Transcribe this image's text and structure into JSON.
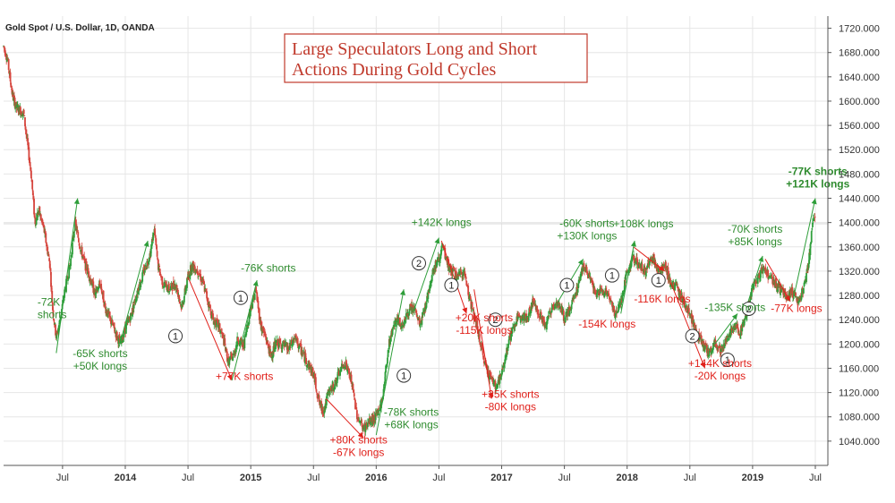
{
  "chart_data": {
    "type": "candlestick",
    "symbol": "Gold Spot / U.S. Dollar, 1D, OANDA",
    "title_lines": [
      "Large Speculators Long and Short",
      "Actions During Gold Cycles"
    ],
    "ylim": [
      1000,
      1740
    ],
    "y_ticks": [
      "1720.000",
      "1680.000",
      "1640.000",
      "1600.000",
      "1560.000",
      "1520.000",
      "1480.000",
      "1440.000",
      "1400.000",
      "1360.000",
      "1320.000",
      "1280.000",
      "1240.000",
      "1200.000",
      "1160.000",
      "1120.000",
      "1080.000",
      "1040.000"
    ],
    "y_tick_values": [
      1720,
      1680,
      1640,
      1600,
      1560,
      1520,
      1480,
      1440,
      1400,
      1360,
      1320,
      1280,
      1240,
      1200,
      1160,
      1120,
      1080,
      1040
    ],
    "x_ticks": [
      {
        "label": "Jul",
        "t": 2013.5,
        "bold": false
      },
      {
        "label": "2014",
        "t": 2014.0,
        "bold": true
      },
      {
        "label": "Jul",
        "t": 2014.5,
        "bold": false
      },
      {
        "label": "2015",
        "t": 2015.0,
        "bold": true
      },
      {
        "label": "Jul",
        "t": 2015.5,
        "bold": false
      },
      {
        "label": "2016",
        "t": 2016.0,
        "bold": true
      },
      {
        "label": "Jul",
        "t": 2016.5,
        "bold": false
      },
      {
        "label": "2017",
        "t": 2017.0,
        "bold": true
      },
      {
        "label": "Jul",
        "t": 2017.5,
        "bold": false
      },
      {
        "label": "2018",
        "t": 2018.0,
        "bold": true
      },
      {
        "label": "Jul",
        "t": 2018.5,
        "bold": false
      },
      {
        "label": "2019",
        "t": 2019.0,
        "bold": true
      },
      {
        "label": "Jul",
        "t": 2019.5,
        "bold": false
      }
    ],
    "xlim": [
      2013.03,
      2019.6
    ],
    "reference_level": 1398,
    "price_path": [
      [
        2013.03,
        1690
      ],
      [
        2013.06,
        1670
      ],
      [
        2013.1,
        1610
      ],
      [
        2013.13,
        1590
      ],
      [
        2013.19,
        1580
      ],
      [
        2013.25,
        1480
      ],
      [
        2013.28,
        1400
      ],
      [
        2013.31,
        1420
      ],
      [
        2013.35,
        1390
      ],
      [
        2013.4,
        1330
      ],
      [
        2013.42,
        1260
      ],
      [
        2013.45,
        1210
      ],
      [
        2013.48,
        1240
      ],
      [
        2013.52,
        1290
      ],
      [
        2013.56,
        1330
      ],
      [
        2013.6,
        1400
      ],
      [
        2013.64,
        1360
      ],
      [
        2013.68,
        1330
      ],
      [
        2013.72,
        1310
      ],
      [
        2013.76,
        1280
      ],
      [
        2013.8,
        1300
      ],
      [
        2013.84,
        1260
      ],
      [
        2013.88,
        1240
      ],
      [
        2013.92,
        1220
      ],
      [
        2013.96,
        1200
      ],
      [
        2014.0,
        1225
      ],
      [
        2014.05,
        1250
      ],
      [
        2014.1,
        1290
      ],
      [
        2014.15,
        1320
      ],
      [
        2014.2,
        1350
      ],
      [
        2014.23,
        1390
      ],
      [
        2014.26,
        1330
      ],
      [
        2014.3,
        1300
      ],
      [
        2014.35,
        1290
      ],
      [
        2014.4,
        1300
      ],
      [
        2014.45,
        1260
      ],
      [
        2014.5,
        1310
      ],
      [
        2014.53,
        1330
      ],
      [
        2014.58,
        1320
      ],
      [
        2014.62,
        1300
      ],
      [
        2014.66,
        1270
      ],
      [
        2014.7,
        1240
      ],
      [
        2014.74,
        1230
      ],
      [
        2014.78,
        1210
      ],
      [
        2014.82,
        1170
      ],
      [
        2014.86,
        1180
      ],
      [
        2014.9,
        1210
      ],
      [
        2014.94,
        1195
      ],
      [
        2015.0,
        1260
      ],
      [
        2015.04,
        1290
      ],
      [
        2015.08,
        1230
      ],
      [
        2015.12,
        1210
      ],
      [
        2015.16,
        1180
      ],
      [
        2015.2,
        1200
      ],
      [
        2015.25,
        1200
      ],
      [
        2015.3,
        1190
      ],
      [
        2015.35,
        1210
      ],
      [
        2015.4,
        1190
      ],
      [
        2015.45,
        1170
      ],
      [
        2015.5,
        1150
      ],
      [
        2015.55,
        1100
      ],
      [
        2015.58,
        1090
      ],
      [
        2015.62,
        1120
      ],
      [
        2015.66,
        1130
      ],
      [
        2015.7,
        1150
      ],
      [
        2015.75,
        1170
      ],
      [
        2015.8,
        1140
      ],
      [
        2015.85,
        1080
      ],
      [
        2015.9,
        1060
      ],
      [
        2015.94,
        1070
      ],
      [
        2016.0,
        1080
      ],
      [
        2016.05,
        1110
      ],
      [
        2016.1,
        1200
      ],
      [
        2016.15,
        1240
      ],
      [
        2016.2,
        1230
      ],
      [
        2016.25,
        1250
      ],
      [
        2016.3,
        1260
      ],
      [
        2016.35,
        1230
      ],
      [
        2016.4,
        1270
      ],
      [
        2016.45,
        1320
      ],
      [
        2016.5,
        1340
      ],
      [
        2016.53,
        1360
      ],
      [
        2016.56,
        1335
      ],
      [
        2016.6,
        1320
      ],
      [
        2016.65,
        1310
      ],
      [
        2016.7,
        1320
      ],
      [
        2016.75,
        1270
      ],
      [
        2016.8,
        1230
      ],
      [
        2016.85,
        1180
      ],
      [
        2016.9,
        1150
      ],
      [
        2016.95,
        1130
      ],
      [
        2017.0,
        1150
      ],
      [
        2017.05,
        1200
      ],
      [
        2017.1,
        1230
      ],
      [
        2017.15,
        1250
      ],
      [
        2017.2,
        1240
      ],
      [
        2017.25,
        1270
      ],
      [
        2017.3,
        1250
      ],
      [
        2017.35,
        1230
      ],
      [
        2017.4,
        1260
      ],
      [
        2017.45,
        1270
      ],
      [
        2017.5,
        1240
      ],
      [
        2017.55,
        1260
      ],
      [
        2017.6,
        1290
      ],
      [
        2017.65,
        1330
      ],
      [
        2017.7,
        1310
      ],
      [
        2017.75,
        1280
      ],
      [
        2017.8,
        1290
      ],
      [
        2017.85,
        1280
      ],
      [
        2017.9,
        1250
      ],
      [
        2017.95,
        1270
      ],
      [
        2018.0,
        1320
      ],
      [
        2018.05,
        1340
      ],
      [
        2018.1,
        1330
      ],
      [
        2018.15,
        1320
      ],
      [
        2018.2,
        1345
      ],
      [
        2018.25,
        1320
      ],
      [
        2018.3,
        1330
      ],
      [
        2018.35,
        1300
      ],
      [
        2018.4,
        1290
      ],
      [
        2018.45,
        1270
      ],
      [
        2018.5,
        1250
      ],
      [
        2018.55,
        1220
      ],
      [
        2018.6,
        1200
      ],
      [
        2018.65,
        1185
      ],
      [
        2018.7,
        1200
      ],
      [
        2018.75,
        1190
      ],
      [
        2018.8,
        1210
      ],
      [
        2018.85,
        1230
      ],
      [
        2018.9,
        1220
      ],
      [
        2018.95,
        1250
      ],
      [
        2019.0,
        1290
      ],
      [
        2019.05,
        1310
      ],
      [
        2019.1,
        1330
      ],
      [
        2019.13,
        1310
      ],
      [
        2019.18,
        1300
      ],
      [
        2019.22,
        1290
      ],
      [
        2019.27,
        1280
      ],
      [
        2019.32,
        1285
      ],
      [
        2019.37,
        1270
      ],
      [
        2019.42,
        1300
      ],
      [
        2019.45,
        1340
      ],
      [
        2019.48,
        1400
      ],
      [
        2019.5,
        1410
      ]
    ],
    "cycle_lines": [
      {
        "from": [
          2013.45,
          1185
        ],
        "to": [
          2013.62,
          1440
        ],
        "color": "green"
      },
      {
        "from": [
          2013.95,
          1195
        ],
        "to": [
          2014.18,
          1370
        ],
        "color": "green"
      },
      {
        "from": [
          2014.5,
          1310
        ],
        "to": [
          2014.85,
          1140
        ],
        "color": "red"
      },
      {
        "from": [
          2014.85,
          1140
        ],
        "to": [
          2015.05,
          1305
        ],
        "color": "green"
      },
      {
        "from": [
          2015.6,
          1110
        ],
        "to": [
          2015.9,
          1045
        ],
        "color": "red"
      },
      {
        "from": [
          2016.0,
          1050
        ],
        "to": [
          2016.22,
          1290
        ],
        "color": "green"
      },
      {
        "from": [
          2016.3,
          1255
        ],
        "to": [
          2016.5,
          1375
        ],
        "color": "green"
      },
      {
        "from": [
          2016.52,
          1370
        ],
        "to": [
          2016.72,
          1250
        ],
        "color": "red"
      },
      {
        "from": [
          2016.78,
          1290
        ],
        "to": [
          2016.92,
          1110
        ],
        "color": "red"
      },
      {
        "from": [
          2017.45,
          1270
        ],
        "to": [
          2017.65,
          1340
        ],
        "color": "green"
      },
      {
        "from": [
          2018.05,
          1360
        ],
        "to": [
          2018.3,
          1320
        ],
        "color": "red"
      },
      {
        "from": [
          2017.95,
          1250
        ],
        "to": [
          2018.06,
          1370
        ],
        "color": "green"
      },
      {
        "from": [
          2018.35,
          1300
        ],
        "to": [
          2018.62,
          1160
        ],
        "color": "red"
      },
      {
        "from": [
          2018.7,
          1200
        ],
        "to": [
          2018.88,
          1250
        ],
        "color": "green"
      },
      {
        "from": [
          2018.95,
          1260
        ],
        "to": [
          2019.08,
          1345
        ],
        "color": "green"
      },
      {
        "from": [
          2019.1,
          1340
        ],
        "to": [
          2019.3,
          1270
        ],
        "color": "red"
      },
      {
        "from": [
          2019.32,
          1270
        ],
        "to": [
          2019.5,
          1440
        ],
        "color": "green"
      }
    ],
    "cycle_markers": [
      {
        "label": "1",
        "t": 2014.4,
        "v": 1213
      },
      {
        "label": "1",
        "t": 2014.92,
        "v": 1276
      },
      {
        "label": "2",
        "t": 2016.34,
        "v": 1333
      },
      {
        "label": "1",
        "t": 2016.22,
        "v": 1148
      },
      {
        "label": "1",
        "t": 2016.6,
        "v": 1297
      },
      {
        "label": "2",
        "t": 2016.95,
        "v": 1240
      },
      {
        "label": "1",
        "t": 2017.52,
        "v": 1297
      },
      {
        "label": "1",
        "t": 2017.88,
        "v": 1313
      },
      {
        "label": "1",
        "t": 2018.25,
        "v": 1305
      },
      {
        "label": "2",
        "t": 2018.52,
        "v": 1213
      },
      {
        "label": "1",
        "t": 2018.8,
        "v": 1174
      },
      {
        "label": "2",
        "t": 2018.97,
        "v": 1258
      }
    ],
    "annotations": [
      {
        "lines": [
          "-72K",
          "shorts"
        ],
        "t": 2013.3,
        "v": 1263,
        "color": "green",
        "bold": false,
        "anchor": "start"
      },
      {
        "lines": [
          "-65K shorts",
          "+50K longs"
        ],
        "t": 2013.8,
        "v": 1178,
        "color": "green",
        "bold": false,
        "anchor": "middle"
      },
      {
        "lines": [
          "+77K shorts"
        ],
        "t": 2014.95,
        "v": 1141,
        "color": "red",
        "bold": false,
        "anchor": "middle"
      },
      {
        "lines": [
          "-76K shorts"
        ],
        "t": 2015.14,
        "v": 1319,
        "color": "green",
        "bold": false,
        "anchor": "middle"
      },
      {
        "lines": [
          "+80K shorts",
          "-67K longs"
        ],
        "t": 2015.86,
        "v": 1036,
        "color": "red",
        "bold": false,
        "anchor": "middle"
      },
      {
        "lines": [
          "-78K shorts",
          "+68K longs"
        ],
        "t": 2016.28,
        "v": 1082,
        "color": "green",
        "bold": false,
        "anchor": "middle"
      },
      {
        "lines": [
          "+142K longs"
        ],
        "t": 2016.52,
        "v": 1394,
        "color": "green",
        "bold": false,
        "anchor": "middle"
      },
      {
        "lines": [
          "+20K shorts",
          "-115K longs"
        ],
        "t": 2016.86,
        "v": 1237,
        "color": "red",
        "bold": false,
        "anchor": "middle"
      },
      {
        "lines": [
          "+35K shorts",
          "-80K longs"
        ],
        "t": 2017.07,
        "v": 1111,
        "color": "red",
        "bold": false,
        "anchor": "middle"
      },
      {
        "lines": [
          "-60K shorts",
          "+130K longs"
        ],
        "t": 2017.68,
        "v": 1393,
        "color": "green",
        "bold": false,
        "anchor": "middle"
      },
      {
        "lines": [
          "-154K longs"
        ],
        "t": 2017.84,
        "v": 1227,
        "color": "red",
        "bold": false,
        "anchor": "middle"
      },
      {
        "lines": [
          "+108K longs"
        ],
        "t": 2018.13,
        "v": 1392,
        "color": "green",
        "bold": false,
        "anchor": "middle"
      },
      {
        "lines": [
          "-116K longs"
        ],
        "t": 2018.28,
        "v": 1268,
        "color": "red",
        "bold": false,
        "anchor": "middle"
      },
      {
        "lines": [
          "-135K shorts"
        ],
        "t": 2018.86,
        "v": 1254,
        "color": "green",
        "bold": false,
        "anchor": "middle"
      },
      {
        "lines": [
          "+144K shorts",
          "-20K longs"
        ],
        "t": 2018.74,
        "v": 1162,
        "color": "red",
        "bold": false,
        "anchor": "middle"
      },
      {
        "lines": [
          "-70K shorts",
          "+85K longs"
        ],
        "t": 2019.02,
        "v": 1383,
        "color": "green",
        "bold": false,
        "anchor": "middle"
      },
      {
        "lines": [
          "-77K longs"
        ],
        "t": 2019.35,
        "v": 1253,
        "color": "red",
        "bold": false,
        "anchor": "middle"
      },
      {
        "lines": [
          "-77K shorts",
          "+121K longs"
        ],
        "t": 2019.52,
        "v": 1478,
        "color": "green",
        "bold": true,
        "anchor": "middle"
      }
    ]
  },
  "colors": {
    "up": "#2e9e3a",
    "down": "#d6453d",
    "green_text": "#2e8b2e",
    "red_text": "#e0201a",
    "title_border": "#c0392b",
    "grid": "#e6e6e6",
    "axis": "#555555"
  }
}
